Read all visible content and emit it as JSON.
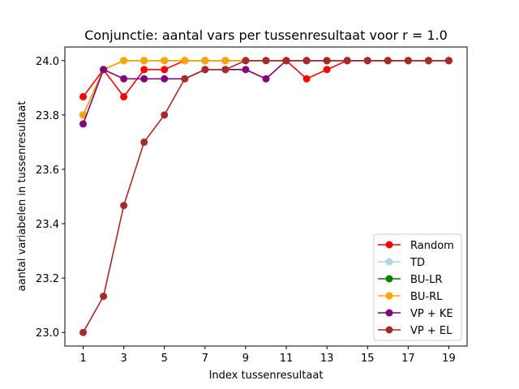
{
  "chart_data": {
    "type": "line",
    "title": "Conjunctie: aantal vars per tussenresultaat voor r = 1.0",
    "xlabel": "Index tussenresultaat",
    "ylabel": "aantal variabelen in tussenresultaat",
    "xlim": [
      0.1,
      19.9
    ],
    "ylim": [
      22.95,
      24.05
    ],
    "xticks": [
      1,
      3,
      5,
      7,
      9,
      11,
      13,
      15,
      17,
      19
    ],
    "yticks": [
      23.0,
      23.2,
      23.4,
      23.6,
      23.8,
      24.0
    ],
    "ytick_labels": [
      "23.0",
      "23.2",
      "23.4",
      "23.6",
      "23.8",
      "24.0"
    ],
    "legend_position": "lower-right",
    "x": [
      1,
      2,
      3,
      4,
      5,
      6,
      7,
      8,
      9,
      10,
      11,
      12,
      13,
      14,
      15,
      16,
      17,
      18,
      19
    ],
    "series": [
      {
        "name": "Random",
        "color": "#ff0000",
        "values": [
          23.867,
          23.967,
          23.867,
          23.967,
          23.967,
          24.0,
          24.0,
          24.0,
          24.0,
          24.0,
          24.0,
          23.933,
          23.967,
          24.0,
          24.0,
          24.0,
          24.0,
          24.0,
          24.0
        ]
      },
      {
        "name": "TD",
        "color": "#add8e6",
        "values": [
          23.8,
          23.967,
          24.0,
          24.0,
          24.0,
          24.0,
          24.0,
          24.0,
          24.0,
          24.0,
          24.0,
          24.0,
          24.0,
          24.0,
          24.0,
          24.0,
          24.0,
          24.0,
          24.0
        ]
      },
      {
        "name": "BU-LR",
        "color": "#008000",
        "values": [
          23.8,
          23.967,
          24.0,
          24.0,
          24.0,
          24.0,
          24.0,
          24.0,
          24.0,
          24.0,
          24.0,
          24.0,
          24.0,
          24.0,
          24.0,
          24.0,
          24.0,
          24.0,
          24.0
        ]
      },
      {
        "name": "BU-RL",
        "color": "#ffa500",
        "values": [
          23.8,
          23.967,
          24.0,
          24.0,
          24.0,
          24.0,
          24.0,
          24.0,
          24.0,
          24.0,
          24.0,
          24.0,
          24.0,
          24.0,
          24.0,
          24.0,
          24.0,
          24.0,
          24.0
        ]
      },
      {
        "name": "VP + KE",
        "color": "#800080",
        "values": [
          23.767,
          23.967,
          23.933,
          23.933,
          23.933,
          23.933,
          23.967,
          23.967,
          23.967,
          23.933,
          24.0,
          24.0,
          24.0,
          24.0,
          24.0,
          24.0,
          24.0,
          24.0,
          24.0
        ]
      },
      {
        "name": "VP + EL",
        "color": "#a52a2a",
        "values": [
          23.0,
          23.133,
          23.467,
          23.7,
          23.8,
          23.933,
          23.967,
          23.967,
          24.0,
          24.0,
          24.0,
          24.0,
          24.0,
          24.0,
          24.0,
          24.0,
          24.0,
          24.0,
          24.0
        ]
      }
    ]
  }
}
